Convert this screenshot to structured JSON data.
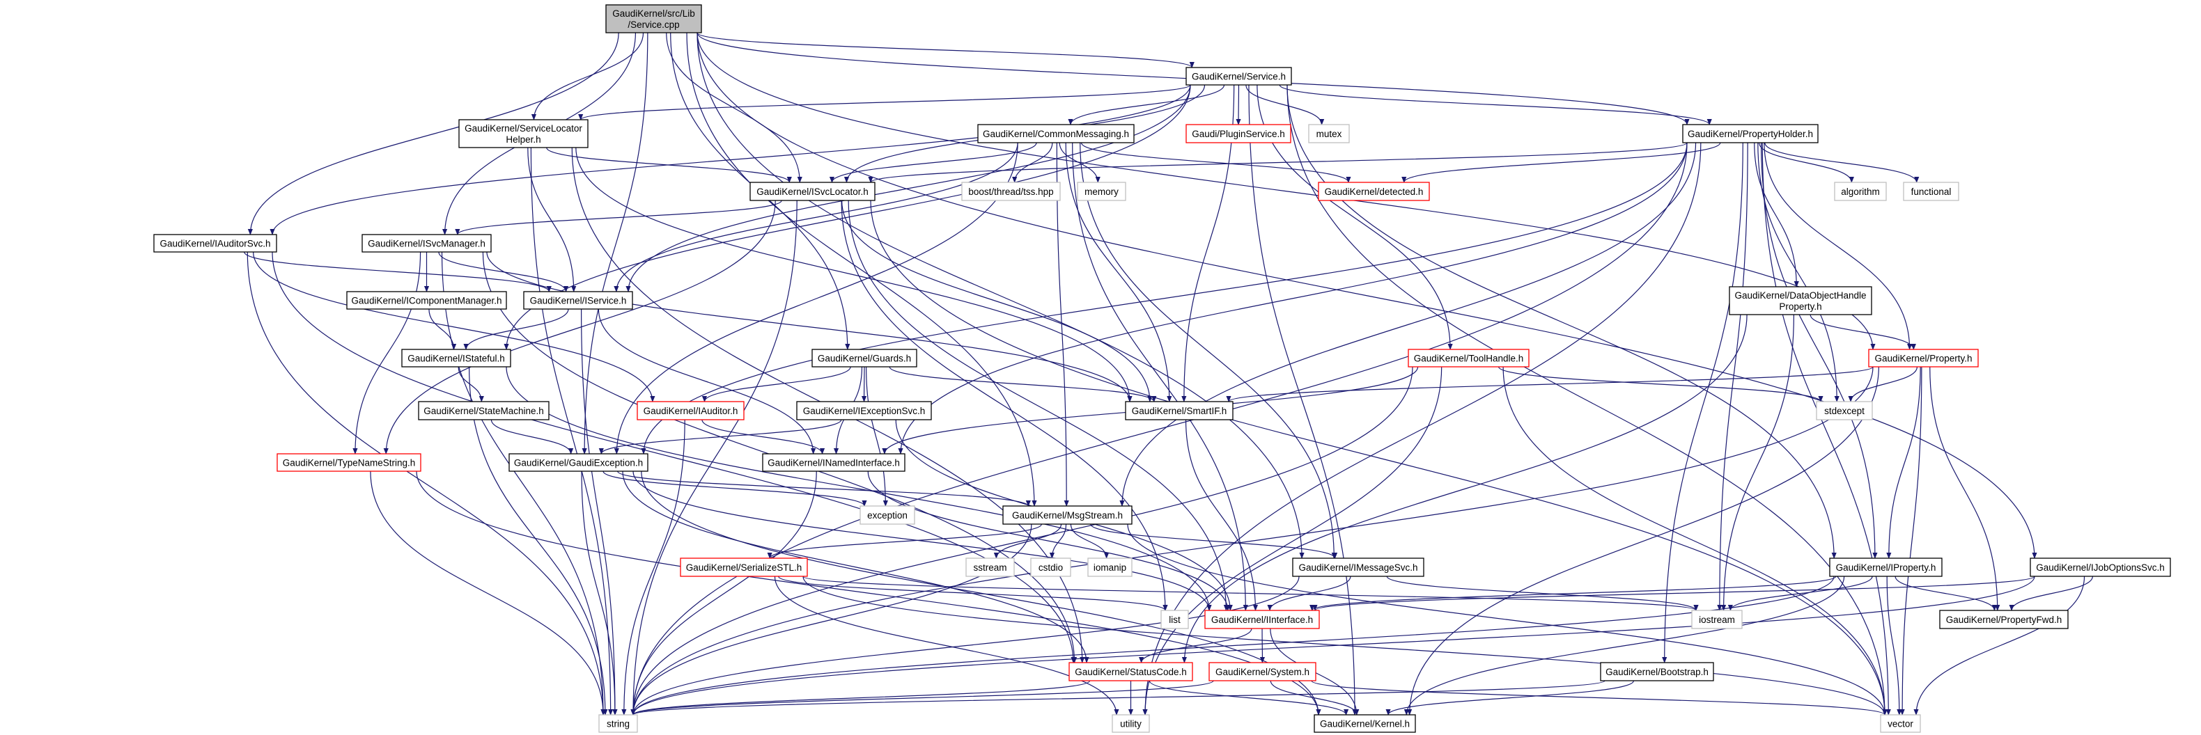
{
  "graph": {
    "edge_color": "#191970",
    "node_colors": {
      "root_fill": "#bfbfbf",
      "normal_border": "#000000",
      "red_border": "#ff0000",
      "ext_border": "#bfbfbf"
    },
    "nodes": [
      {
        "id": "root",
        "lines": [
          "GaudiKernel/src/Lib",
          "/Service.cpp"
        ],
        "kind": "root"
      },
      {
        "id": "service_h",
        "lines": [
          "GaudiKernel/Service.h"
        ],
        "kind": "normal"
      },
      {
        "id": "slh",
        "lines": [
          "GaudiKernel/ServiceLocator",
          "Helper.h"
        ],
        "kind": "normal"
      },
      {
        "id": "commsg",
        "lines": [
          "GaudiKernel/CommonMessaging.h"
        ],
        "kind": "normal"
      },
      {
        "id": "plugin",
        "lines": [
          "Gaudi/PluginService.h"
        ],
        "kind": "red"
      },
      {
        "id": "mutex",
        "lines": [
          "mutex"
        ],
        "kind": "ext"
      },
      {
        "id": "propholder",
        "lines": [
          "GaudiKernel/PropertyHolder.h"
        ],
        "kind": "normal"
      },
      {
        "id": "isvclocator",
        "lines": [
          "GaudiKernel/ISvcLocator.h"
        ],
        "kind": "normal"
      },
      {
        "id": "boost",
        "lines": [
          "boost/thread/tss.hpp"
        ],
        "kind": "ext"
      },
      {
        "id": "memory",
        "lines": [
          "memory"
        ],
        "kind": "ext"
      },
      {
        "id": "detected",
        "lines": [
          "GaudiKernel/detected.h"
        ],
        "kind": "red"
      },
      {
        "id": "algorithm",
        "lines": [
          "algorithm"
        ],
        "kind": "ext"
      },
      {
        "id": "functional",
        "lines": [
          "functional"
        ],
        "kind": "ext"
      },
      {
        "id": "iauditorsvc",
        "lines": [
          "GaudiKernel/IAuditorSvc.h"
        ],
        "kind": "normal"
      },
      {
        "id": "isvcmanager",
        "lines": [
          "GaudiKernel/ISvcManager.h"
        ],
        "kind": "normal"
      },
      {
        "id": "icompmgr",
        "lines": [
          "GaudiKernel/IComponentManager.h"
        ],
        "kind": "normal"
      },
      {
        "id": "iservice",
        "lines": [
          "GaudiKernel/IService.h"
        ],
        "kind": "normal"
      },
      {
        "id": "dohp",
        "lines": [
          "GaudiKernel/DataObjectHandle",
          "Property.h"
        ],
        "kind": "normal"
      },
      {
        "id": "istateful",
        "lines": [
          "GaudiKernel/IStateful.h"
        ],
        "kind": "normal"
      },
      {
        "id": "guards",
        "lines": [
          "GaudiKernel/Guards.h"
        ],
        "kind": "normal"
      },
      {
        "id": "toolhandle",
        "lines": [
          "GaudiKernel/ToolHandle.h"
        ],
        "kind": "red"
      },
      {
        "id": "property",
        "lines": [
          "GaudiKernel/Property.h"
        ],
        "kind": "red"
      },
      {
        "id": "statemachine",
        "lines": [
          "GaudiKernel/StateMachine.h"
        ],
        "kind": "normal"
      },
      {
        "id": "iauditor",
        "lines": [
          "GaudiKernel/IAuditor.h"
        ],
        "kind": "red"
      },
      {
        "id": "iexceptionsvc",
        "lines": [
          "GaudiKernel/IExceptionSvc.h"
        ],
        "kind": "normal"
      },
      {
        "id": "smartif",
        "lines": [
          "GaudiKernel/SmartIF.h"
        ],
        "kind": "normal"
      },
      {
        "id": "stdexcept",
        "lines": [
          "stdexcept"
        ],
        "kind": "ext"
      },
      {
        "id": "typename",
        "lines": [
          "GaudiKernel/TypeNameString.h"
        ],
        "kind": "red"
      },
      {
        "id": "gaudiexc",
        "lines": [
          "GaudiKernel/GaudiException.h"
        ],
        "kind": "normal"
      },
      {
        "id": "inamed",
        "lines": [
          "GaudiKernel/INamedInterface.h"
        ],
        "kind": "normal"
      },
      {
        "id": "exception",
        "lines": [
          "exception"
        ],
        "kind": "ext"
      },
      {
        "id": "msgstream",
        "lines": [
          "GaudiKernel/MsgStream.h"
        ],
        "kind": "normal"
      },
      {
        "id": "serialize",
        "lines": [
          "GaudiKernel/SerializeSTL.h"
        ],
        "kind": "red"
      },
      {
        "id": "sstream",
        "lines": [
          "sstream"
        ],
        "kind": "ext"
      },
      {
        "id": "cstdio",
        "lines": [
          "cstdio"
        ],
        "kind": "ext"
      },
      {
        "id": "iomanip",
        "lines": [
          "iomanip"
        ],
        "kind": "ext"
      },
      {
        "id": "imessagesvc",
        "lines": [
          "GaudiKernel/IMessageSvc.h"
        ],
        "kind": "normal"
      },
      {
        "id": "iproperty",
        "lines": [
          "GaudiKernel/IProperty.h"
        ],
        "kind": "normal"
      },
      {
        "id": "ijoboptions",
        "lines": [
          "GaudiKernel/IJobOptionsSvc.h"
        ],
        "kind": "normal"
      },
      {
        "id": "list",
        "lines": [
          "list"
        ],
        "kind": "ext"
      },
      {
        "id": "iinterface",
        "lines": [
          "GaudiKernel/IInterface.h"
        ],
        "kind": "red"
      },
      {
        "id": "iostream",
        "lines": [
          "iostream"
        ],
        "kind": "ext"
      },
      {
        "id": "propfwd",
        "lines": [
          "GaudiKernel/PropertyFwd.h"
        ],
        "kind": "normal"
      },
      {
        "id": "statuscode",
        "lines": [
          "GaudiKernel/StatusCode.h"
        ],
        "kind": "red"
      },
      {
        "id": "system",
        "lines": [
          "GaudiKernel/System.h"
        ],
        "kind": "red"
      },
      {
        "id": "bootstrap",
        "lines": [
          "GaudiKernel/Bootstrap.h"
        ],
        "kind": "normal"
      },
      {
        "id": "string",
        "lines": [
          "string"
        ],
        "kind": "ext"
      },
      {
        "id": "utility",
        "lines": [
          "utility"
        ],
        "kind": "ext"
      },
      {
        "id": "kernel",
        "lines": [
          "GaudiKernel/Kernel.h"
        ],
        "kind": "normal"
      },
      {
        "id": "vector",
        "lines": [
          "vector"
        ],
        "kind": "ext"
      }
    ],
    "edges": [
      [
        "root",
        "service_h"
      ],
      [
        "root",
        "slh"
      ],
      [
        "root",
        "iauditorsvc"
      ],
      [
        "root",
        "isvcmanager"
      ],
      [
        "root",
        "isvclocator"
      ],
      [
        "root",
        "guards"
      ],
      [
        "root",
        "gaudiexc"
      ],
      [
        "root",
        "msgstream"
      ],
      [
        "root",
        "propholder"
      ],
      [
        "root",
        "property"
      ],
      [
        "root",
        "imessagesvc"
      ],
      [
        "root",
        "ijoboptions"
      ],
      [
        "service_h",
        "commsg"
      ],
      [
        "service_h",
        "plugin"
      ],
      [
        "service_h",
        "mutex"
      ],
      [
        "service_h",
        "isvclocator"
      ],
      [
        "service_h",
        "iservice"
      ],
      [
        "service_h",
        "iauditorsvc"
      ],
      [
        "service_h",
        "slh"
      ],
      [
        "service_h",
        "smartif"
      ],
      [
        "service_h",
        "istateful"
      ],
      [
        "service_h",
        "toolhandle"
      ],
      [
        "service_h",
        "propholder"
      ],
      [
        "service_h",
        "iproperty"
      ],
      [
        "service_h",
        "vector"
      ],
      [
        "service_h",
        "kernel"
      ],
      [
        "slh",
        "isvclocator"
      ],
      [
        "slh",
        "iservice"
      ],
      [
        "slh",
        "smartif"
      ],
      [
        "slh",
        "string"
      ],
      [
        "slh",
        "statuscode"
      ],
      [
        "commsg",
        "isvclocator"
      ],
      [
        "commsg",
        "iservice"
      ],
      [
        "commsg",
        "boost"
      ],
      [
        "commsg",
        "memory"
      ],
      [
        "commsg",
        "detected"
      ],
      [
        "commsg",
        "smartif"
      ],
      [
        "commsg",
        "msgstream"
      ],
      [
        "commsg",
        "imessagesvc"
      ],
      [
        "commsg",
        "gaudiexc"
      ],
      [
        "commsg",
        "iinterface"
      ],
      [
        "isvclocator",
        "isvcmanager"
      ],
      [
        "isvclocator",
        "iinterface"
      ],
      [
        "isvclocator",
        "smartif"
      ],
      [
        "isvclocator",
        "typename"
      ],
      [
        "isvclocator",
        "list"
      ],
      [
        "isvclocator",
        "string"
      ],
      [
        "isvclocator",
        "vector"
      ],
      [
        "iauditorsvc",
        "iservice"
      ],
      [
        "iauditorsvc",
        "iauditor"
      ],
      [
        "iauditorsvc",
        "string"
      ],
      [
        "iauditorsvc",
        "statuscode"
      ],
      [
        "isvcmanager",
        "icompmgr"
      ],
      [
        "isvcmanager",
        "iservice"
      ],
      [
        "isvcmanager",
        "smartif"
      ],
      [
        "isvcmanager",
        "typename"
      ],
      [
        "isvcmanager",
        "string"
      ],
      [
        "isvcmanager",
        "statuscode"
      ],
      [
        "icompmgr",
        "istateful"
      ],
      [
        "iservice",
        "istateful"
      ],
      [
        "iservice",
        "inamed"
      ],
      [
        "iservice",
        "string"
      ],
      [
        "istateful",
        "statemachine"
      ],
      [
        "istateful",
        "iinterface"
      ],
      [
        "istateful",
        "string"
      ],
      [
        "statemachine",
        "gaudiexc"
      ],
      [
        "guards",
        "iauditor"
      ],
      [
        "guards",
        "iexceptionsvc"
      ],
      [
        "guards",
        "smartif"
      ],
      [
        "guards",
        "inamed"
      ],
      [
        "guards",
        "exception"
      ],
      [
        "iauditor",
        "inamed"
      ],
      [
        "iauditor",
        "string"
      ],
      [
        "iexceptionsvc",
        "gaudiexc"
      ],
      [
        "iexceptionsvc",
        "iinterface"
      ],
      [
        "typename",
        "string"
      ],
      [
        "typename",
        "kernel"
      ],
      [
        "gaudiexc",
        "msgstream"
      ],
      [
        "gaudiexc",
        "exception"
      ],
      [
        "gaudiexc",
        "string"
      ],
      [
        "gaudiexc",
        "statuscode"
      ],
      [
        "gaudiexc",
        "iinterface"
      ],
      [
        "gaudiexc",
        "kernel"
      ],
      [
        "inamed",
        "iinterface"
      ],
      [
        "inamed",
        "string"
      ],
      [
        "msgstream",
        "imessagesvc"
      ],
      [
        "msgstream",
        "serialize"
      ],
      [
        "msgstream",
        "sstream"
      ],
      [
        "msgstream",
        "cstdio"
      ],
      [
        "msgstream",
        "iomanip"
      ],
      [
        "msgstream",
        "string"
      ],
      [
        "msgstream",
        "vector"
      ],
      [
        "serialize",
        "list"
      ],
      [
        "serialize",
        "utility"
      ],
      [
        "serialize",
        "vector"
      ],
      [
        "serialize",
        "iostream"
      ],
      [
        "imessagesvc",
        "iinterface"
      ],
      [
        "imessagesvc",
        "iostream"
      ],
      [
        "imessagesvc",
        "string"
      ],
      [
        "iinterface",
        "statuscode"
      ],
      [
        "iinterface",
        "system"
      ],
      [
        "iinterface",
        "kernel"
      ],
      [
        "statuscode",
        "kernel"
      ],
      [
        "statuscode",
        "utility"
      ],
      [
        "statuscode",
        "string"
      ],
      [
        "system",
        "kernel"
      ],
      [
        "system",
        "string"
      ],
      [
        "system",
        "vector"
      ],
      [
        "smartif",
        "iinterface"
      ],
      [
        "propholder",
        "isvclocator"
      ],
      [
        "propholder",
        "detected"
      ],
      [
        "propholder",
        "algorithm"
      ],
      [
        "propholder",
        "functional"
      ],
      [
        "propholder",
        "dohp"
      ],
      [
        "propholder",
        "property"
      ],
      [
        "propholder",
        "iproperty"
      ],
      [
        "propholder",
        "stdexcept"
      ],
      [
        "propholder",
        "iostream"
      ],
      [
        "propholder",
        "string"
      ],
      [
        "propholder",
        "vector"
      ],
      [
        "propholder",
        "utility"
      ],
      [
        "propholder",
        "bootstrap"
      ],
      [
        "propholder",
        "msgstream"
      ],
      [
        "propholder",
        "inamed"
      ],
      [
        "propholder",
        "gaudiexc"
      ],
      [
        "toolhandle",
        "inamed"
      ],
      [
        "toolhandle",
        "stdexcept"
      ],
      [
        "toolhandle",
        "string"
      ],
      [
        "toolhandle",
        "vector"
      ],
      [
        "toolhandle",
        "utility"
      ],
      [
        "property",
        "smartif"
      ],
      [
        "property",
        "stdexcept"
      ],
      [
        "property",
        "iproperty"
      ],
      [
        "property",
        "propfwd"
      ],
      [
        "property",
        "string"
      ],
      [
        "property",
        "vector"
      ],
      [
        "property",
        "kernel"
      ],
      [
        "dohp",
        "property"
      ],
      [
        "dohp",
        "iostream"
      ],
      [
        "dohp",
        "statuscode"
      ],
      [
        "iproperty",
        "iinterface"
      ],
      [
        "iproperty",
        "iostream"
      ],
      [
        "iproperty",
        "propfwd"
      ],
      [
        "iproperty",
        "vector"
      ],
      [
        "iproperty",
        "kernel"
      ],
      [
        "iproperty",
        "string"
      ],
      [
        "ijoboptions",
        "iinterface"
      ],
      [
        "ijoboptions",
        "propfwd"
      ],
      [
        "ijoboptions",
        "vector"
      ],
      [
        "ijoboptions",
        "string"
      ],
      [
        "bootstrap",
        "kernel"
      ],
      [
        "bootstrap",
        "string"
      ]
    ]
  }
}
